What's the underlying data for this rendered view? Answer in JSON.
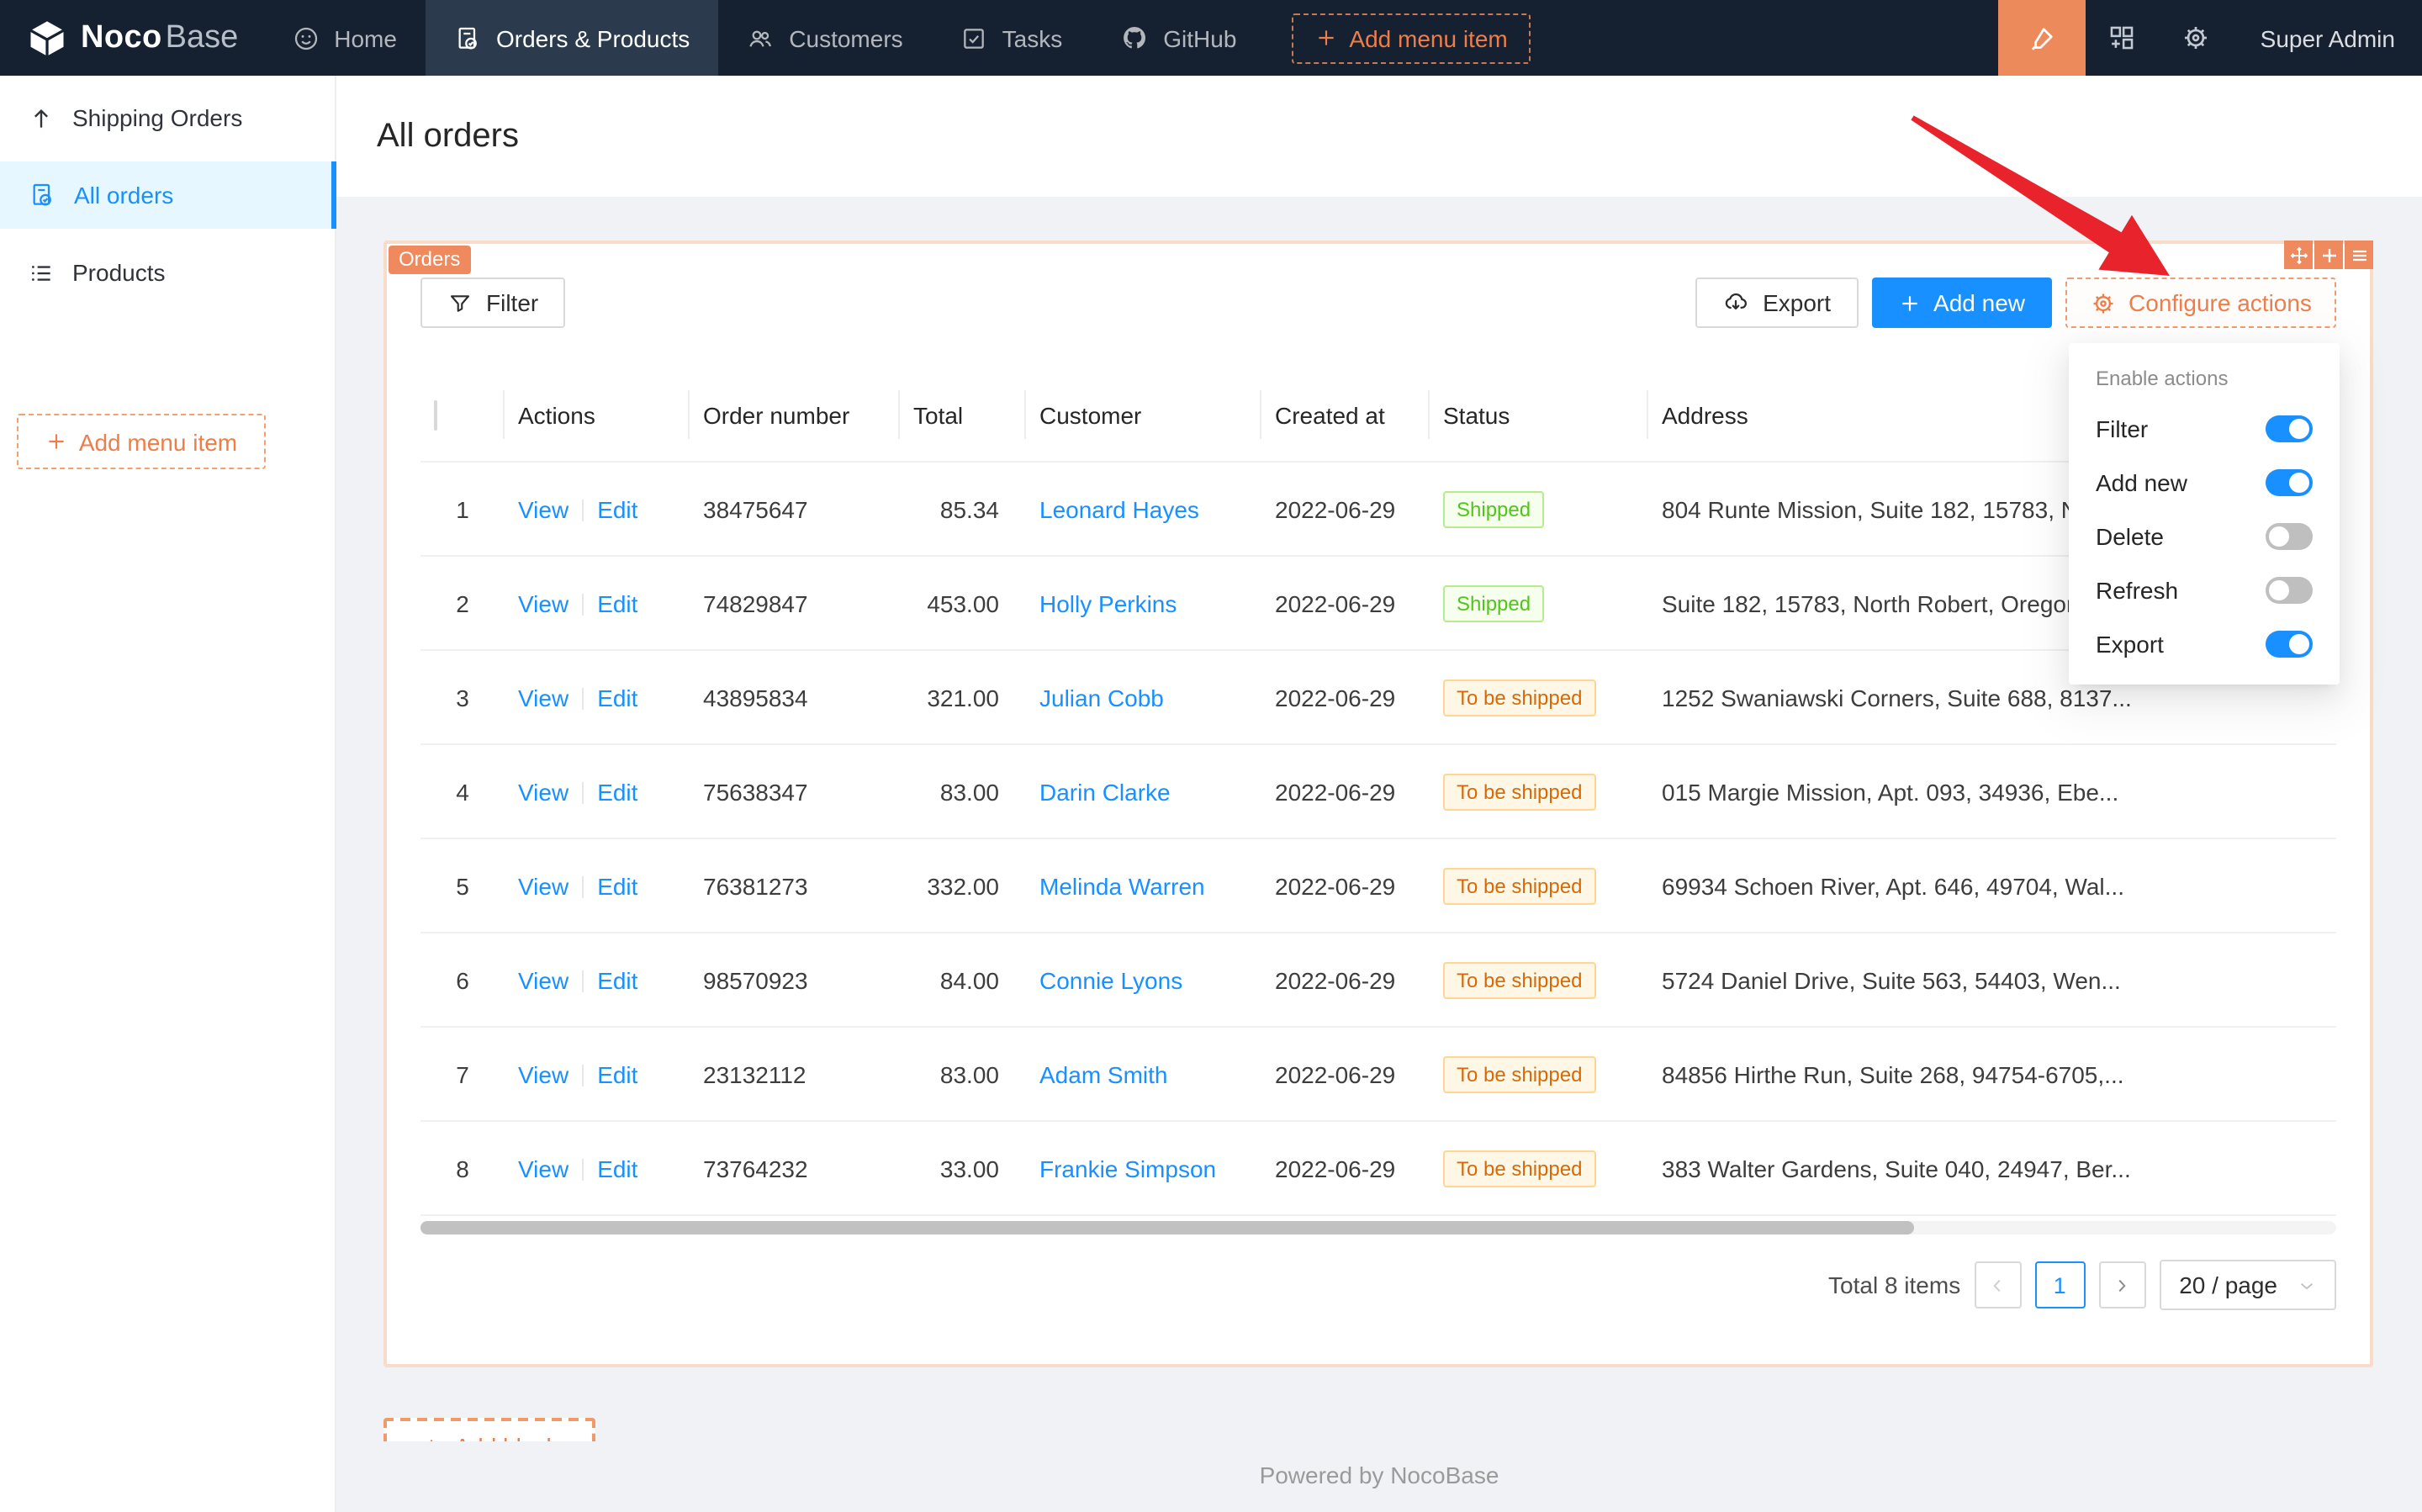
{
  "navbar": {
    "logo": {
      "noco": "Noco",
      "base": "Base"
    },
    "tabs": [
      {
        "label": "Home",
        "icon": "smile-icon",
        "active": false
      },
      {
        "label": "Orders & Products",
        "icon": "file-done-icon",
        "active": true
      },
      {
        "label": "Customers",
        "icon": "team-icon",
        "active": false
      },
      {
        "label": "Tasks",
        "icon": "check-square-icon",
        "active": false
      },
      {
        "label": "GitHub",
        "icon": "github-icon",
        "active": false
      }
    ],
    "add_menu_item_label": "Add menu item",
    "right_icons": [
      "highlighter-icon",
      "blocks-icon",
      "gear-icon"
    ],
    "user": "Super Admin"
  },
  "sidebar": {
    "items": [
      {
        "label": "Shipping Orders",
        "icon": "arrow-up-icon",
        "active": false
      },
      {
        "label": "All orders",
        "icon": "file-done-icon",
        "active": true
      },
      {
        "label": "Products",
        "icon": "list-icon",
        "active": false
      }
    ],
    "add_menu_item_label": "Add menu item"
  },
  "page": {
    "title": "All orders"
  },
  "orders_block": {
    "tag": "Orders",
    "toolbar": {
      "filter": "Filter",
      "export": "Export",
      "add_new": "Add new",
      "configure_actions": "Configure actions"
    }
  },
  "enable_actions_menu": {
    "title": "Enable actions",
    "items": [
      {
        "label": "Filter",
        "on": true
      },
      {
        "label": "Add new",
        "on": true
      },
      {
        "label": "Delete",
        "on": false
      },
      {
        "label": "Refresh",
        "on": false
      },
      {
        "label": "Export",
        "on": true
      }
    ]
  },
  "table": {
    "columns": [
      "",
      "Actions",
      "Order number",
      "Total",
      "Customer",
      "Created at",
      "Status",
      "Address"
    ],
    "action_labels": {
      "view": "View",
      "edit": "Edit"
    },
    "rows": [
      {
        "index": "1",
        "order_number": "38475647",
        "total": "85.34",
        "customer": "Leonard Hayes",
        "created_at": "2022-06-29",
        "status": "Shipped",
        "status_type": "success",
        "address": "804 Runte Mission, Suite 182, 15783, No..."
      },
      {
        "index": "2",
        "order_number": "74829847",
        "total": "453.00",
        "customer": "Holly Perkins",
        "created_at": "2022-06-29",
        "status": "Shipped",
        "status_type": "success",
        "address": "Suite 182, 15783, North Robert, Oregon..."
      },
      {
        "index": "3",
        "order_number": "43895834",
        "total": "321.00",
        "customer": "Julian Cobb",
        "created_at": "2022-06-29",
        "status": "To be shipped",
        "status_type": "warning",
        "address": "1252 Swaniawski Corners, Suite 688, 8137..."
      },
      {
        "index": "4",
        "order_number": "75638347",
        "total": "83.00",
        "customer": "Darin Clarke",
        "created_at": "2022-06-29",
        "status": "To be shipped",
        "status_type": "warning",
        "address": "015 Margie Mission, Apt. 093, 34936, Ebe..."
      },
      {
        "index": "5",
        "order_number": "76381273",
        "total": "332.00",
        "customer": "Melinda Warren",
        "created_at": "2022-06-29",
        "status": "To be shipped",
        "status_type": "warning",
        "address": "69934 Schoen River, Apt. 646, 49704, Wal..."
      },
      {
        "index": "6",
        "order_number": "98570923",
        "total": "84.00",
        "customer": "Connie Lyons",
        "created_at": "2022-06-29",
        "status": "To be shipped",
        "status_type": "warning",
        "address": "5724 Daniel Drive, Suite 563, 54403, Wen..."
      },
      {
        "index": "7",
        "order_number": "23132112",
        "total": "83.00",
        "customer": "Adam Smith",
        "created_at": "2022-06-29",
        "status": "To be shipped",
        "status_type": "warning",
        "address": "84856 Hirthe Run, Suite 268, 94754-6705,..."
      },
      {
        "index": "8",
        "order_number": "73764232",
        "total": "33.00",
        "customer": "Frankie Simpson",
        "created_at": "2022-06-29",
        "status": "To be shipped",
        "status_type": "warning",
        "address": "383 Walter Gardens, Suite 040, 24947, Ber..."
      }
    ]
  },
  "pagination": {
    "total_text": "Total 8 items",
    "prev_icon": "chevron-left-icon",
    "current_page": "1",
    "next_icon": "chevron-right-icon",
    "page_size": "20 / page"
  },
  "add_block_label": "Add block",
  "footer": "Powered by NocoBase",
  "colors": {
    "navbar_bg": "#152030",
    "navbar_active_tab": "#2b3b4d",
    "accent_blue": "#1890ff",
    "orange": "#ee8a5e",
    "orange_text": "#ee7d4a",
    "card_border": "#f8dcc9",
    "sidebar_active_bg": "#e6f7ff",
    "content_bg": "#f0f2f5",
    "success_text": "#52c41a",
    "success_bg": "#f6ffed",
    "success_border": "#b7eb8f",
    "warning_text": "#d46b08",
    "warning_bg": "#fff7e6",
    "warning_border": "#ffd591",
    "annotation_arrow_red": "#e8232b"
  }
}
